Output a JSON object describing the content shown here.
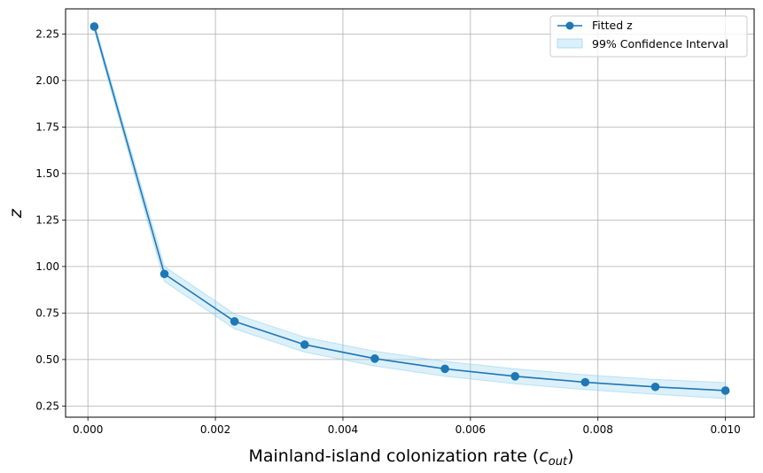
{
  "chart_data": {
    "type": "line",
    "title": "",
    "xlabel_main": "Mainland-island colonization rate (",
    "xlabel_var": "c",
    "xlabel_sub": "out",
    "xlabel_close": ")",
    "ylabel": "z",
    "xlim": [
      -0.00035,
      0.01045
    ],
    "ylim": [
      0.19,
      2.385
    ],
    "xticks": [
      0.0,
      0.002,
      0.004,
      0.006,
      0.008,
      0.01
    ],
    "xtick_labels": [
      "0.000",
      "0.002",
      "0.004",
      "0.006",
      "0.008",
      "0.010"
    ],
    "yticks": [
      0.25,
      0.5,
      0.75,
      1.0,
      1.25,
      1.5,
      1.75,
      2.0,
      2.25
    ],
    "ytick_labels": [
      "0.25",
      "0.50",
      "0.75",
      "1.00",
      "1.25",
      "1.50",
      "1.75",
      "2.00",
      "2.25"
    ],
    "grid": true,
    "legend_position": "top-right",
    "series": [
      {
        "name": "Fitted z",
        "color": "#1f77b4",
        "marker": "circle",
        "x": [
          0.0001,
          0.0012,
          0.0023,
          0.0034,
          0.0045,
          0.0056,
          0.0067,
          0.0078,
          0.0089,
          0.01
        ],
        "y": [
          2.29,
          0.96,
          0.705,
          0.58,
          0.505,
          0.45,
          0.41,
          0.378,
          0.353,
          0.333
        ]
      }
    ],
    "confidence_band": {
      "name": "99% Confidence Interval",
      "color": "#87ceeb",
      "x": [
        0.0001,
        0.0012,
        0.0023,
        0.0034,
        0.0045,
        0.0056,
        0.0067,
        0.0078,
        0.0089,
        0.01
      ],
      "lower": [
        2.27,
        0.92,
        0.665,
        0.54,
        0.465,
        0.41,
        0.37,
        0.338,
        0.313,
        0.29
      ],
      "upper": [
        2.31,
        1.0,
        0.745,
        0.62,
        0.545,
        0.49,
        0.45,
        0.418,
        0.393,
        0.376
      ]
    }
  }
}
